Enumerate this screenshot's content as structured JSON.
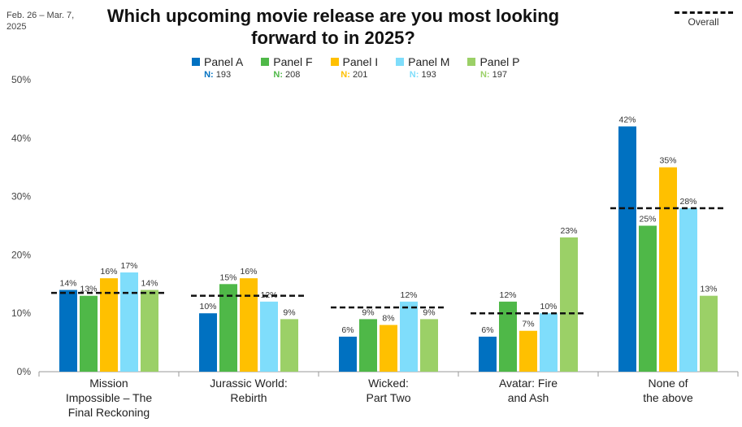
{
  "date_range": "Feb. 26 – Mar. 7, 2025",
  "title": "Which upcoming movie release are you most looking forward to in 2025?",
  "overall_label": "Overall",
  "legend": [
    {
      "name": "Panel A",
      "n_label": "N:",
      "n_value": "193",
      "color": "#0071C1"
    },
    {
      "name": "Panel F",
      "n_label": "N:",
      "n_value": "208",
      "color": "#4FB848"
    },
    {
      "name": "Panel I",
      "n_label": "N:",
      "n_value": "201",
      "color": "#FFC000"
    },
    {
      "name": "Panel M",
      "n_label": "N:",
      "n_value": "193",
      "color": "#7FDDFB"
    },
    {
      "name": "Panel P",
      "n_label": "N:",
      "n_value": "197",
      "color": "#9BD067"
    }
  ],
  "chart_data": {
    "type": "bar",
    "categories": [
      [
        "Mission",
        "Impossible – The",
        "Final Reckoning"
      ],
      [
        "Jurassic World:",
        "Rebirth"
      ],
      [
        "Wicked:",
        "Part Two"
      ],
      [
        "Avatar: Fire",
        "and Ash"
      ],
      [
        "None of",
        "the above"
      ]
    ],
    "series": [
      {
        "name": "Panel A",
        "values": [
          14,
          10,
          6,
          6,
          42
        ],
        "labels": [
          "14%",
          "10%",
          "6%",
          "6%",
          "42%"
        ]
      },
      {
        "name": "Panel F",
        "values": [
          13,
          15,
          9,
          12,
          25
        ],
        "labels": [
          "13%",
          "15%",
          "9%",
          "12%",
          "25%"
        ]
      },
      {
        "name": "Panel I",
        "values": [
          16,
          16,
          8,
          7,
          35
        ],
        "labels": [
          "16%",
          "16%",
          "8%",
          "7%",
          "35%"
        ]
      },
      {
        "name": "Panel M",
        "values": [
          17,
          12,
          12,
          10,
          28
        ],
        "labels": [
          "17%",
          "12%",
          "12%",
          "10%",
          "28%"
        ]
      },
      {
        "name": "Panel P",
        "values": [
          14,
          9,
          9,
          23,
          13
        ],
        "labels": [
          "14%",
          "9%",
          "9%",
          "23%",
          "13%"
        ]
      }
    ],
    "overall": [
      13.5,
      13,
      11,
      10,
      28
    ],
    "yticks": [
      "0%",
      "10%",
      "20%",
      "30%",
      "40%",
      "50%"
    ],
    "ylim": [
      0,
      50
    ],
    "grid": false,
    "legend_position": "top"
  }
}
